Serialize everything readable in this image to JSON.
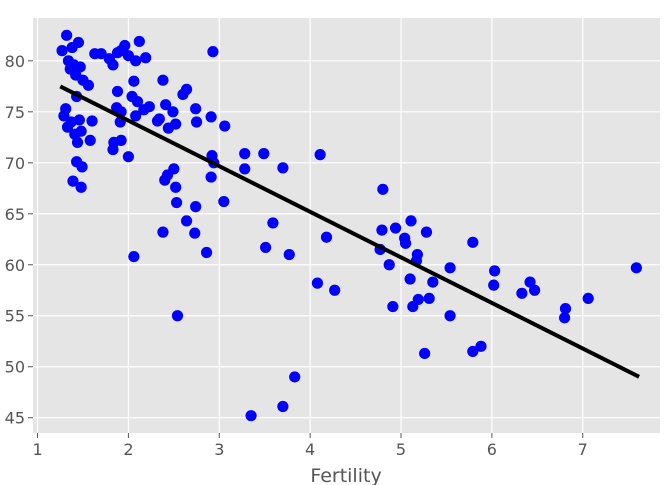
{
  "chart_data": {
    "type": "scatter",
    "title": "",
    "xlabel": "Fertility",
    "ylabel": "",
    "xlim": [
      0.95,
      7.85
    ],
    "ylim": [
      43.5,
      84.2
    ],
    "x_ticks": [
      1,
      2,
      3,
      4,
      5,
      6,
      7
    ],
    "x_tick_labels": [
      "1",
      "2",
      "3",
      "4",
      "5",
      "6",
      "7"
    ],
    "y_ticks": [
      45,
      50,
      55,
      60,
      65,
      70,
      75,
      80
    ],
    "y_tick_labels": [
      "45",
      "50",
      "55",
      "60",
      "65",
      "70",
      "75",
      "80"
    ],
    "grid": true,
    "colors": {
      "background": "#e5e5e5",
      "grid": "#ffffff",
      "points": "#0000ff",
      "line": "#000000",
      "text": "#555555"
    },
    "series": [
      {
        "kind": "points",
        "points": [
          [
            1.32,
            82.5
          ],
          [
            1.27,
            81.0
          ],
          [
            1.38,
            81.3
          ],
          [
            1.45,
            81.8
          ],
          [
            1.34,
            80.0
          ],
          [
            1.4,
            79.6
          ],
          [
            1.47,
            79.4
          ],
          [
            1.36,
            79.2
          ],
          [
            1.42,
            78.6
          ],
          [
            1.5,
            78.1
          ],
          [
            1.56,
            77.6
          ],
          [
            1.43,
            76.5
          ],
          [
            1.31,
            75.3
          ],
          [
            1.29,
            74.6
          ],
          [
            1.37,
            74.0
          ],
          [
            1.33,
            73.5
          ],
          [
            1.46,
            74.2
          ],
          [
            1.48,
            73.1
          ],
          [
            1.41,
            72.8
          ],
          [
            1.44,
            72.0
          ],
          [
            1.58,
            72.2
          ],
          [
            1.6,
            74.1
          ],
          [
            1.43,
            70.1
          ],
          [
            1.49,
            69.6
          ],
          [
            1.39,
            68.2
          ],
          [
            1.48,
            67.6
          ],
          [
            1.63,
            80.7
          ],
          [
            1.7,
            80.7
          ],
          [
            1.79,
            80.2
          ],
          [
            1.83,
            79.6
          ],
          [
            1.88,
            80.8
          ],
          [
            1.92,
            81.0
          ],
          [
            1.96,
            81.5
          ],
          [
            2.0,
            80.5
          ],
          [
            2.08,
            80.0
          ],
          [
            2.12,
            81.9
          ],
          [
            2.19,
            80.3
          ],
          [
            2.06,
            78.0
          ],
          [
            1.88,
            77.0
          ],
          [
            2.04,
            76.5
          ],
          [
            2.1,
            76.0
          ],
          [
            1.87,
            75.4
          ],
          [
            1.92,
            75.0
          ],
          [
            2.08,
            74.6
          ],
          [
            2.17,
            75.2
          ],
          [
            2.23,
            75.5
          ],
          [
            1.91,
            74.0
          ],
          [
            1.84,
            72.0
          ],
          [
            1.83,
            71.3
          ],
          [
            1.92,
            72.2
          ],
          [
            2.0,
            70.6
          ],
          [
            2.38,
            78.1
          ],
          [
            2.6,
            76.7
          ],
          [
            2.64,
            77.2
          ],
          [
            2.41,
            75.7
          ],
          [
            2.49,
            75.0
          ],
          [
            2.34,
            74.3
          ],
          [
            2.44,
            73.4
          ],
          [
            2.32,
            74.1
          ],
          [
            2.52,
            73.8
          ],
          [
            2.74,
            75.3
          ],
          [
            2.75,
            74.0
          ],
          [
            2.91,
            74.5
          ],
          [
            3.06,
            73.6
          ],
          [
            2.93,
            80.9
          ],
          [
            2.5,
            69.4
          ],
          [
            2.43,
            68.8
          ],
          [
            2.4,
            68.3
          ],
          [
            2.52,
            67.6
          ],
          [
            2.92,
            70.7
          ],
          [
            2.94,
            70.0
          ],
          [
            2.91,
            68.6
          ],
          [
            2.53,
            66.1
          ],
          [
            2.74,
            65.7
          ],
          [
            3.05,
            66.2
          ],
          [
            2.64,
            64.3
          ],
          [
            2.73,
            63.1
          ],
          [
            2.38,
            63.2
          ],
          [
            2.86,
            61.2
          ],
          [
            2.06,
            60.8
          ],
          [
            2.54,
            55.0
          ],
          [
            3.28,
            70.9
          ],
          [
            3.49,
            70.9
          ],
          [
            3.7,
            69.5
          ],
          [
            3.28,
            69.4
          ],
          [
            4.11,
            70.8
          ],
          [
            3.59,
            64.1
          ],
          [
            3.51,
            61.7
          ],
          [
            3.77,
            61.0
          ],
          [
            4.18,
            62.7
          ],
          [
            4.08,
            58.2
          ],
          [
            4.27,
            57.5
          ],
          [
            3.83,
            49.0
          ],
          [
            3.7,
            46.1
          ],
          [
            3.35,
            45.2
          ],
          [
            4.8,
            67.4
          ],
          [
            4.79,
            63.4
          ],
          [
            4.94,
            63.6
          ],
          [
            5.11,
            64.3
          ],
          [
            5.28,
            63.2
          ],
          [
            5.04,
            62.6
          ],
          [
            5.05,
            62.1
          ],
          [
            4.77,
            61.5
          ],
          [
            5.18,
            61.0
          ],
          [
            5.17,
            60.4
          ],
          [
            4.87,
            60.0
          ],
          [
            5.54,
            59.7
          ],
          [
            5.35,
            58.3
          ],
          [
            5.1,
            58.6
          ],
          [
            5.19,
            56.6
          ],
          [
            5.13,
            55.9
          ],
          [
            5.31,
            56.7
          ],
          [
            4.91,
            55.9
          ],
          [
            5.54,
            55.0
          ],
          [
            5.26,
            51.3
          ],
          [
            5.79,
            62.2
          ],
          [
            6.03,
            59.4
          ],
          [
            6.02,
            58.0
          ],
          [
            6.42,
            58.3
          ],
          [
            6.33,
            57.2
          ],
          [
            6.47,
            57.5
          ],
          [
            5.79,
            51.5
          ],
          [
            5.88,
            52.0
          ],
          [
            6.81,
            55.7
          ],
          [
            6.8,
            54.8
          ],
          [
            7.06,
            56.7
          ],
          [
            7.59,
            59.7
          ]
        ]
      },
      {
        "kind": "fit-line",
        "x": [
          1.27,
          7.6
        ],
        "y": [
          77.4,
          49.1
        ]
      }
    ]
  }
}
